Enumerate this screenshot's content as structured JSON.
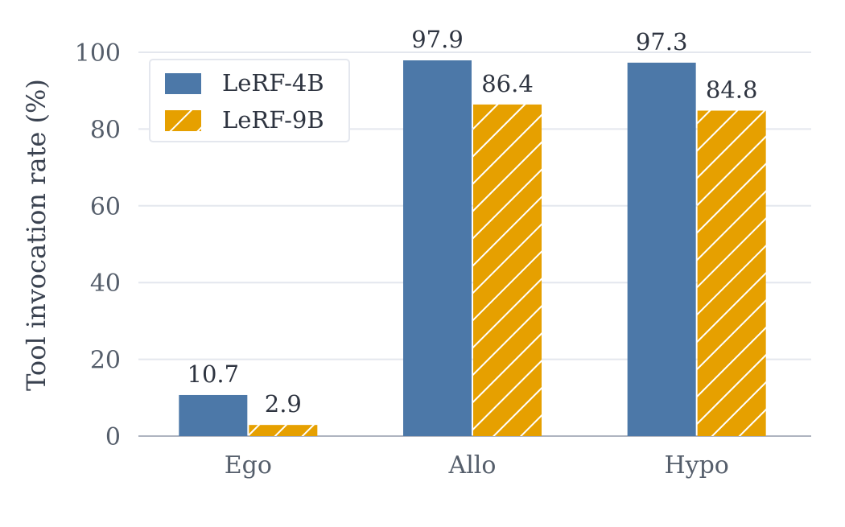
{
  "chart_data": {
    "type": "bar",
    "title": "",
    "xlabel": "",
    "ylabel": "Tool invocation rate (%)",
    "categories": [
      "Ego",
      "Allo",
      "Hypo"
    ],
    "series": [
      {
        "name": "LeRF-4B",
        "values": [
          10.7,
          97.9,
          97.3
        ],
        "value_labels": [
          "10.7",
          "97.9",
          "97.3"
        ],
        "color": "#4c78a8",
        "hatch": false
      },
      {
        "name": "LeRF-9B",
        "values": [
          2.9,
          86.4,
          84.8
        ],
        "value_labels": [
          "2.9",
          "86.4",
          "84.8"
        ],
        "color": "#e6a000",
        "hatch": true
      }
    ],
    "ylim": [
      0,
      100
    ],
    "yticks": [
      0,
      20,
      40,
      60,
      80,
      100
    ],
    "ytick_labels": [
      "0",
      "20",
      "40",
      "60",
      "80",
      "100"
    ],
    "grid": true,
    "legend_position": "upper-left"
  }
}
